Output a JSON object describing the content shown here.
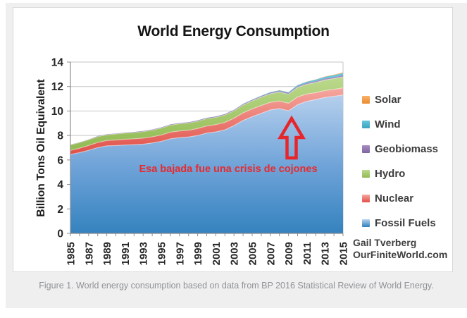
{
  "figure": {
    "title": "World Energy Consumption",
    "annotation": "Esa bajada fue una crisis de cojones",
    "attribution_line1": "Gail Tverberg",
    "attribution_line2": "OurFiniteWorld.com",
    "caption": "Figure 1. World energy consumption based on data from BP 2016 Statistical Review of World Energy."
  },
  "colors": {
    "annotation_red": "#e7262b",
    "arrow_red": "#e7262b",
    "gridline": "#c6c6c6",
    "axis": "#8c8c8c",
    "tick_label": "#262626",
    "panel_background": "#efefef",
    "figure_border": "#d9d9d9"
  },
  "chart_data": {
    "type": "area",
    "stacked": true,
    "title": "World Energy Consumption",
    "xlabel": "",
    "ylabel": "Billion Tons Oil Equivalent",
    "ylim": [
      0,
      14
    ],
    "ytick_step": 2,
    "ytick_labels": [
      "0",
      "2",
      "4",
      "6",
      "8",
      "10",
      "12",
      "14"
    ],
    "grid": "horizontal",
    "legend_position": "right",
    "legend_order_top_to_bottom": [
      "Solar",
      "Wind",
      "Geobiomass",
      "Hydro",
      "Nuclear",
      "Fossil Fuels"
    ],
    "x": [
      1985,
      1986,
      1987,
      1988,
      1989,
      1990,
      1991,
      1992,
      1993,
      1994,
      1995,
      1996,
      1997,
      1998,
      1999,
      2000,
      2001,
      2002,
      2003,
      2004,
      2005,
      2006,
      2007,
      2008,
      2009,
      2010,
      2011,
      2012,
      2013,
      2014,
      2015
    ],
    "xtick_labels": [
      "1985",
      "1987",
      "1989",
      "1991",
      "1993",
      "1995",
      "1997",
      "1999",
      "2001",
      "2003",
      "2005",
      "2007",
      "2009",
      "2011",
      "2013",
      "2015"
    ],
    "units": "billion tons oil equivalent",
    "series": [
      {
        "name": "Fossil Fuels",
        "color": "#5d91ce",
        "gradient": [
          "#b8d1ee",
          "#6fa3d8",
          "#2e7fbc"
        ],
        "values": [
          6.45,
          6.6,
          6.79,
          7.01,
          7.15,
          7.18,
          7.22,
          7.25,
          7.29,
          7.39,
          7.52,
          7.73,
          7.83,
          7.88,
          8.0,
          8.2,
          8.29,
          8.46,
          8.81,
          9.23,
          9.54,
          9.81,
          10.09,
          10.2,
          10.02,
          10.52,
          10.79,
          10.94,
          11.11,
          11.2,
          11.31
        ]
      },
      {
        "name": "Nuclear",
        "color": "#dd524e",
        "gradient": [
          "#f5a79f",
          "#e05048"
        ],
        "values": [
          0.33,
          0.36,
          0.39,
          0.42,
          0.44,
          0.45,
          0.47,
          0.48,
          0.49,
          0.5,
          0.52,
          0.54,
          0.54,
          0.55,
          0.57,
          0.58,
          0.6,
          0.61,
          0.6,
          0.62,
          0.63,
          0.64,
          0.62,
          0.62,
          0.61,
          0.63,
          0.6,
          0.56,
          0.56,
          0.57,
          0.58
        ]
      },
      {
        "name": "Hydro",
        "color": "#a2c464",
        "gradient": [
          "#bbd98c",
          "#92ba52"
        ],
        "values": [
          0.45,
          0.46,
          0.47,
          0.48,
          0.47,
          0.49,
          0.51,
          0.51,
          0.54,
          0.55,
          0.57,
          0.58,
          0.59,
          0.59,
          0.6,
          0.6,
          0.59,
          0.61,
          0.61,
          0.64,
          0.66,
          0.69,
          0.7,
          0.73,
          0.74,
          0.78,
          0.79,
          0.83,
          0.86,
          0.88,
          0.89
        ]
      },
      {
        "name": "Geobiomass",
        "color": "#8e6eac",
        "gradient": [
          "#a78cc0",
          "#8064a2"
        ],
        "values": [
          0.03,
          0.03,
          0.03,
          0.04,
          0.04,
          0.04,
          0.04,
          0.05,
          0.05,
          0.05,
          0.05,
          0.06,
          0.06,
          0.06,
          0.06,
          0.06,
          0.07,
          0.07,
          0.07,
          0.08,
          0.08,
          0.08,
          0.09,
          0.09,
          0.1,
          0.1,
          0.11,
          0.11,
          0.12,
          0.12,
          0.13
        ]
      },
      {
        "name": "Wind",
        "color": "#33b6cf",
        "gradient": [
          "#66c7dc",
          "#3ba3bf"
        ],
        "values": [
          0,
          0,
          0,
          0,
          0,
          0,
          0,
          0,
          0,
          0,
          0,
          0,
          0,
          0,
          0.01,
          0.01,
          0.01,
          0.01,
          0.01,
          0.02,
          0.02,
          0.03,
          0.04,
          0.05,
          0.06,
          0.08,
          0.1,
          0.12,
          0.14,
          0.16,
          0.19
        ]
      },
      {
        "name": "Solar",
        "color": "#f0953f",
        "gradient": [
          "#f8b26a",
          "#ed8a2e"
        ],
        "values": [
          0,
          0,
          0,
          0,
          0,
          0,
          0,
          0,
          0,
          0,
          0,
          0,
          0,
          0,
          0,
          0,
          0,
          0,
          0,
          0,
          0,
          0,
          0,
          0.01,
          0.01,
          0.01,
          0.01,
          0.02,
          0.03,
          0.04,
          0.06
        ]
      }
    ],
    "annotations": [
      {
        "text": "Esa bajada fue una crisis de cojones",
        "color": "#e7262b",
        "near_x": 2009,
        "type": "text-with-up-arrow"
      }
    ]
  }
}
